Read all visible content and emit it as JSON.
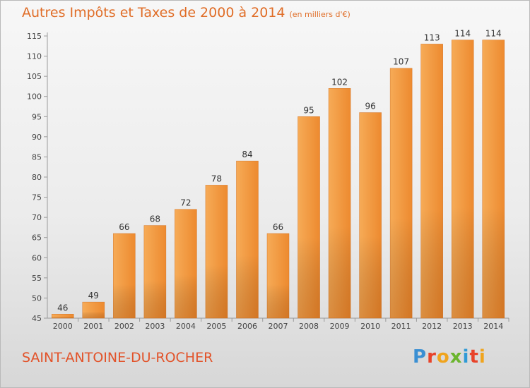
{
  "chart_data": {
    "type": "bar",
    "title": "Autres Impôts et Taxes de 2000 à 2014",
    "subtitle": "(en milliers d'€)",
    "categories": [
      "2000",
      "2001",
      "2002",
      "2003",
      "2004",
      "2005",
      "2006",
      "2007",
      "2008",
      "2009",
      "2010",
      "2011",
      "2012",
      "2013",
      "2014"
    ],
    "values": [
      46,
      49,
      66,
      68,
      72,
      78,
      84,
      66,
      95,
      102,
      96,
      107,
      113,
      114,
      114
    ],
    "xlabel": "",
    "ylabel": "",
    "ylim": [
      45,
      115
    ],
    "yticks": [
      45,
      50,
      55,
      60,
      65,
      70,
      75,
      80,
      85,
      90,
      95,
      100,
      105,
      110,
      115
    ],
    "grid": false,
    "bar_color": "#f39a42"
  },
  "footer": {
    "place": "SAINT-ANTOINE-DU-ROCHER",
    "logo_letters": [
      "P",
      "r",
      "o",
      "x",
      "i",
      "t",
      "i"
    ],
    "logo_colors": [
      "#3a8fd3",
      "#e8432a",
      "#f0a41d",
      "#6bb52e",
      "#2f9ad6",
      "#e8432a",
      "#f0a41d"
    ]
  }
}
